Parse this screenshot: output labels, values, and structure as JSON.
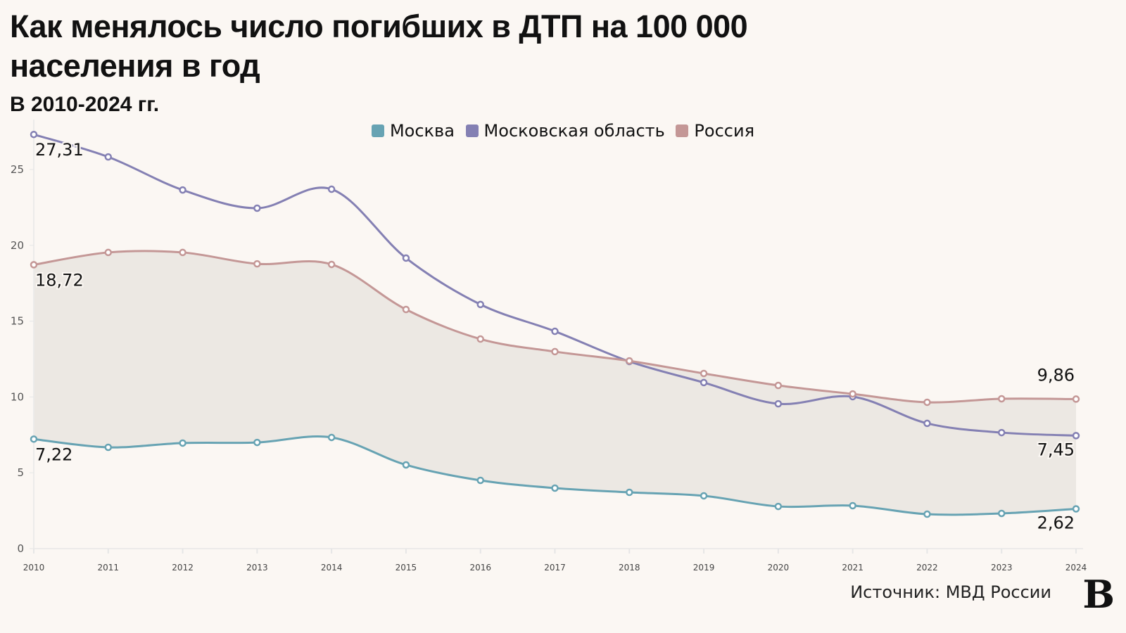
{
  "title": "Как менялось число погибших в ДТП на 100 000 населения в год",
  "subtitle": "В 2010-2024 гг.",
  "source": "Источник: МВД России",
  "logo": "В",
  "chart_data": {
    "type": "line",
    "x": [
      2010,
      2011,
      2012,
      2013,
      2014,
      2015,
      2016,
      2017,
      2018,
      2019,
      2020,
      2021,
      2022,
      2023,
      2024
    ],
    "ylim": [
      0,
      27.5
    ],
    "yticks": [
      0,
      5,
      10,
      15,
      20,
      25
    ],
    "legend": "top",
    "grid": false,
    "shaded_area": "between Россия and Москва",
    "series": [
      {
        "name": "Москва",
        "color": "#67a3b3",
        "values": [
          7.22,
          6.68,
          6.96,
          7.0,
          7.33,
          5.52,
          4.5,
          3.99,
          3.71,
          3.48,
          2.78,
          2.83,
          2.27,
          2.32,
          2.62
        ],
        "labels": {
          "first": "7,22",
          "last": "2,62"
        }
      },
      {
        "name": "Московская область",
        "color": "#8480b3",
        "values": [
          27.31,
          25.83,
          23.65,
          22.45,
          23.7,
          19.16,
          16.1,
          14.33,
          12.34,
          10.95,
          9.55,
          10.02,
          8.26,
          7.65,
          7.45
        ],
        "labels": {
          "first": "27,31",
          "last": "7,45"
        }
      },
      {
        "name": "Россия",
        "color": "#c49796",
        "values": [
          18.72,
          19.53,
          19.53,
          18.78,
          18.74,
          15.77,
          13.82,
          12.99,
          12.38,
          11.55,
          10.76,
          10.2,
          9.65,
          9.88,
          9.86
        ],
        "labels": {
          "first": "18,72",
          "last": "9,86"
        }
      }
    ],
    "area_color": "#ece8e3"
  }
}
